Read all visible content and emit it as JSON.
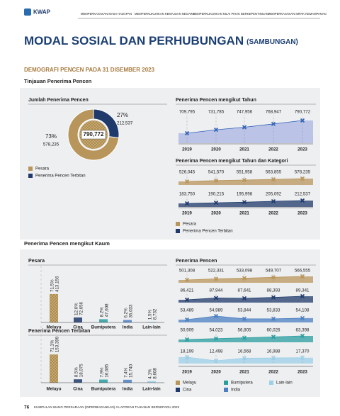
{
  "header": {
    "logo": "KWAP",
    "nav": [
      "MEMPERKASAKAN MASA HADAPAN",
      "MEMPERKUKUHKAN KEMAJUAN NEGARA",
      "MEMPERKUKUHKAN NILAI PIHAK BERKEPENTINGAN",
      "MEMPERKASAKAN IMPAK KEMAMPANAN"
    ]
  },
  "title": "MODAL SOSIAL DAN PERHUBUNGAN",
  "title_suffix": "(SAMBUNGAN)",
  "subtitle": "DEMOGRAFI PENCEN PADA 31 DISEMBER 2023",
  "overview": {
    "heading": "Tinjauan Penerima Pencen",
    "total": {
      "type": "pie",
      "title": "Jumlah Penerima Pencen",
      "center_label": "790,772",
      "categories": [
        "Pesara",
        "Penerima Pencen Terbitan"
      ],
      "colors": [
        "#b8955a",
        "#1f3a6b"
      ],
      "values": [
        73,
        27
      ],
      "value_labels": [
        "73%",
        "27%"
      ],
      "counts": [
        "578,235",
        "212,537"
      ]
    },
    "by_year": {
      "type": "area",
      "title": "Penerima Pencen mengikut Tahun",
      "categories": [
        "2019",
        "2020",
        "2021",
        "2022",
        "2023"
      ],
      "color": "#aab4e3",
      "marker_color": "#2f62b5",
      "values": [
        709795,
        731785,
        747956,
        768947,
        790772
      ],
      "value_labels": [
        "709,795",
        "731,785",
        "747,956",
        "768,947",
        "790,772"
      ]
    },
    "by_year_category": {
      "type": "line",
      "title": "Penerima Pencen mengikut Tahun dan Kategori",
      "categories": [
        "2019",
        "2020",
        "2021",
        "2022",
        "2023"
      ],
      "series": [
        {
          "name": "Pesara",
          "color": "#b8955a",
          "values": [
            526045,
            541570,
            551958,
            563855,
            578235
          ],
          "value_labels": [
            "526,045",
            "541,570",
            "551,958",
            "563,855",
            "578,235"
          ]
        },
        {
          "name": "Penerima Pencen Terbitan",
          "color": "#1f3a6b",
          "values": [
            183750,
            190215,
            195998,
            205092,
            212537
          ],
          "value_labels": [
            "183,750",
            "190,215",
            "195,998",
            "205,092",
            "212,537"
          ]
        }
      ]
    }
  },
  "by_race": {
    "heading": "Penerima Pencen mengikut Kaum",
    "pesara": {
      "type": "bar",
      "title": "Pesara",
      "categories": [
        "Melayu",
        "Cina",
        "Bumiputera",
        "India",
        "Lain-lain"
      ],
      "colors": [
        "#b8955a",
        "#1f3a6b",
        "#2a9d9f",
        "#4a7fc1",
        "#9ccfe8"
      ],
      "values": [
        71.5,
        12.6,
        8.2,
        6.2,
        1.5
      ],
      "value_labels": [
        "71.5%",
        "12.6%",
        "8.2%",
        "6.2%",
        "1.5%"
      ],
      "counts": [
        "413,156",
        "72,656",
        "47,608",
        "36,033",
        "8,732"
      ]
    },
    "terbitan": {
      "type": "bar",
      "title": "Penerima Pencen Terbitan",
      "categories": [
        "Melayu",
        "Cina",
        "Bumiputera",
        "India",
        "Lain-lain"
      ],
      "colors": [
        "#b8955a",
        "#1f3a6b",
        "#2a9d9f",
        "#4a7fc1",
        "#9ccfe8"
      ],
      "values": [
        71.1,
        8.5,
        7.9,
        7.4,
        4.1
      ],
      "value_labels": [
        "71.1%",
        "8.5%",
        "7.9%",
        "7.4%",
        "4.1%"
      ],
      "counts": [
        "153,399",
        "18,075",
        "16,685",
        "15,740",
        "8,608"
      ]
    },
    "by_year": {
      "type": "line",
      "title": "Penerima Pencen",
      "categories": [
        "2019",
        "2020",
        "2021",
        "2022",
        "2023"
      ],
      "series": [
        {
          "name": "Melayu",
          "color": "#b8955a",
          "values": [
            501308,
            522331,
            533098,
            549707,
            566555
          ],
          "value_labels": [
            "501,308",
            "522,331",
            "533,098",
            "549,707",
            "566,555"
          ]
        },
        {
          "name": "Cina",
          "color": "#1f3a6b",
          "values": [
            86421,
            87944,
            87641,
            88393,
            89341
          ],
          "value_labels": [
            "86,421",
            "87,944",
            "87,641",
            "88,393",
            "89,341"
          ]
        },
        {
          "name": "India",
          "color": "#4a7fc1",
          "values": [
            53489,
            54989,
            53844,
            53833,
            54108
          ],
          "value_labels": [
            "53,489",
            "54,989",
            "53,844",
            "53,833",
            "54,108"
          ]
        },
        {
          "name": "Bumiputera",
          "color": "#2a9d9f",
          "values": [
            50909,
            54023,
            56805,
            60026,
            63398
          ],
          "value_labels": [
            "50,909",
            "54,023",
            "56,805",
            "60,026",
            "63,398"
          ]
        },
        {
          "name": "Lain-lain",
          "color": "#9ccfe8",
          "values": [
            18199,
            12498,
            16568,
            16988,
            17370
          ],
          "value_labels": [
            "18,199",
            "12,498",
            "16,568",
            "16,988",
            "17,370"
          ]
        }
      ]
    }
  },
  "footer": {
    "page": "76",
    "text": "KUMPULAN WANG PERSARAAN (DIPERBADANKAN) II LAPORAN TAHUNAN BERSEPADU 2023"
  }
}
